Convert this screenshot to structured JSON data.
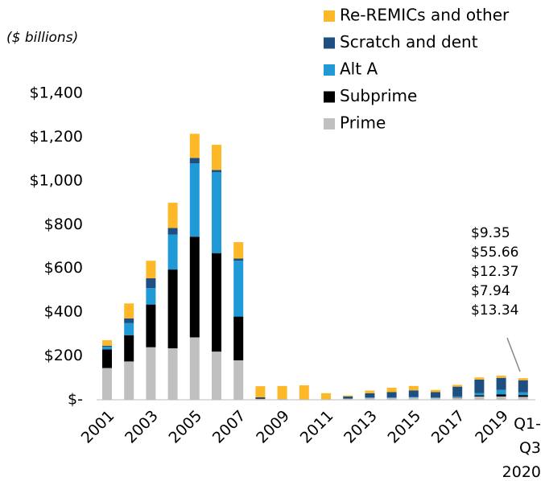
{
  "chart_data": {
    "type": "stacked_bar",
    "y_axis_label": "($ billions)",
    "categories": [
      "2001",
      null,
      "2003",
      null,
      "2005",
      null,
      "2007",
      null,
      "2009",
      null,
      "2011",
      null,
      "2013",
      null,
      "2015",
      null,
      "2017",
      null,
      "2019",
      "Q1-Q3 2020"
    ],
    "series": [
      {
        "name": "Prime",
        "color": "#c0c0c0",
        "values": [
          145,
          175,
          240,
          235,
          285,
          220,
          180,
          5,
          2,
          1,
          2,
          5,
          8,
          8,
          10,
          8,
          10,
          15,
          15,
          13.34
        ],
        "value_labels": [
          null,
          null,
          null,
          null,
          null,
          null,
          null,
          null,
          null,
          null,
          null,
          null,
          null,
          null,
          null,
          null,
          null,
          null,
          null,
          "$13.34"
        ]
      },
      {
        "name": "Subprime",
        "color": "#000000",
        "values": [
          85,
          120,
          195,
          360,
          460,
          450,
          200,
          5,
          0,
          0,
          0,
          0,
          0,
          0,
          0,
          0,
          2,
          5,
          10,
          7.94
        ],
        "value_labels": [
          null,
          null,
          null,
          null,
          null,
          null,
          null,
          null,
          null,
          null,
          null,
          null,
          null,
          null,
          null,
          null,
          null,
          null,
          null,
          "$7.94"
        ]
      },
      {
        "name": "Alt A",
        "color": "#1f9ad6",
        "values": [
          12,
          55,
          75,
          160,
          335,
          370,
          255,
          2,
          1,
          0,
          0,
          0,
          2,
          2,
          3,
          2,
          3,
          10,
          20,
          12.37
        ],
        "value_labels": [
          null,
          null,
          null,
          null,
          null,
          null,
          null,
          null,
          null,
          null,
          null,
          null,
          null,
          null,
          null,
          null,
          null,
          null,
          null,
          "$12.37"
        ]
      },
      {
        "name": "Scratch and dent",
        "color": "#1f4e80",
        "values": [
          5,
          22,
          45,
          30,
          25,
          10,
          10,
          0,
          0,
          0,
          0,
          10,
          20,
          25,
          30,
          25,
          45,
          62,
          55,
          55.66
        ],
        "value_labels": [
          null,
          null,
          null,
          null,
          null,
          null,
          null,
          null,
          null,
          null,
          null,
          null,
          null,
          null,
          null,
          null,
          null,
          null,
          null,
          "$55.66"
        ]
      },
      {
        "name": "Re-REMICs and other",
        "color": "#fdb827",
        "values": [
          25,
          68,
          80,
          115,
          110,
          115,
          75,
          50,
          60,
          65,
          28,
          5,
          12,
          20,
          20,
          10,
          8,
          10,
          10,
          9.35
        ],
        "value_labels": [
          null,
          null,
          null,
          null,
          null,
          null,
          null,
          null,
          null,
          null,
          null,
          null,
          null,
          null,
          null,
          null,
          null,
          null,
          null,
          "$9.35"
        ]
      }
    ],
    "ylim": [
      0,
      1400
    ],
    "yticks": [
      {
        "value": 0,
        "label": "$-"
      },
      {
        "value": 200,
        "label": "$200"
      },
      {
        "value": 400,
        "label": "$400"
      },
      {
        "value": 600,
        "label": "$600"
      },
      {
        "value": 800,
        "label": "$800"
      },
      {
        "value": 1000,
        "label": "$1,000"
      },
      {
        "value": 1200,
        "label": "$1,200"
      },
      {
        "value": 1400,
        "label": "$1,400"
      }
    ],
    "grid": false
  }
}
